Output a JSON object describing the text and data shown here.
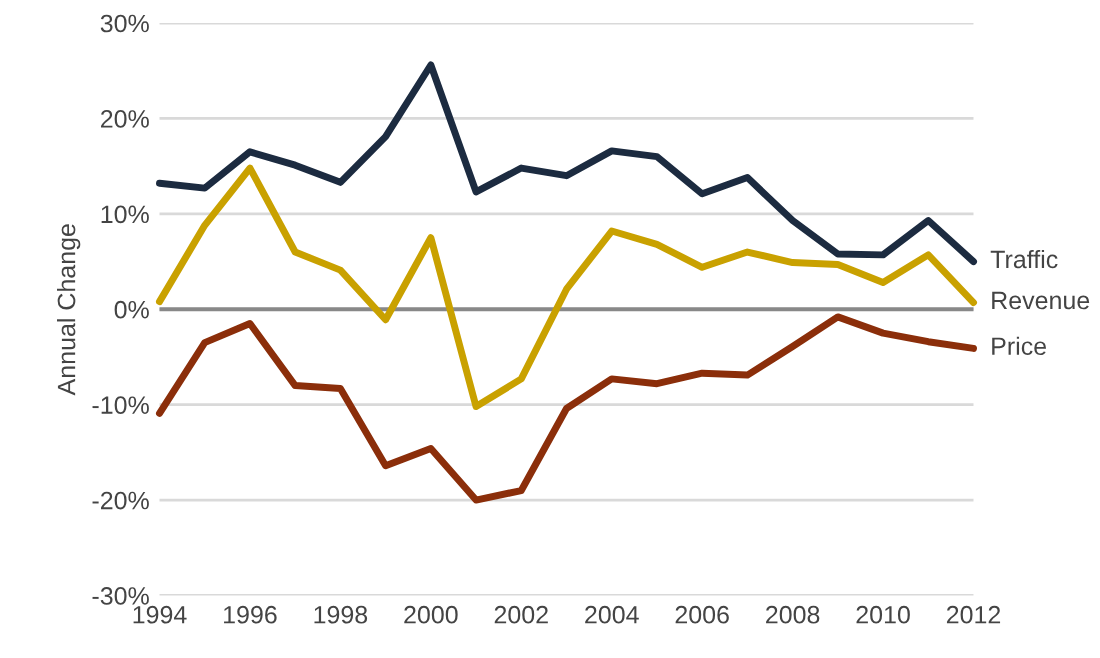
{
  "chart_data": {
    "type": "line",
    "ylabel": "Annual Change",
    "x": [
      1994,
      1995,
      1996,
      1997,
      1998,
      1999,
      2000,
      2001,
      2002,
      2003,
      2004,
      2005,
      2006,
      2007,
      2008,
      2009,
      2010,
      2011,
      2012
    ],
    "series": [
      {
        "name": "Traffic",
        "color": "#1c2b40",
        "values": [
          13.2,
          12.7,
          16.5,
          15.1,
          13.3,
          18.1,
          25.6,
          12.3,
          14.8,
          14.0,
          16.6,
          16.0,
          12.1,
          13.8,
          9.3,
          5.8,
          5.7,
          9.3,
          5.0
        ]
      },
      {
        "name": "Revenue",
        "color": "#c9a100",
        "values": [
          0.8,
          8.8,
          14.8,
          6.0,
          4.1,
          -1.1,
          7.5,
          -10.2,
          -7.3,
          2.1,
          8.2,
          6.8,
          4.4,
          6.0,
          4.9,
          4.7,
          2.8,
          5.7,
          0.7
        ]
      },
      {
        "name": "Price",
        "color": "#8b2e0a",
        "values": [
          -10.9,
          -3.5,
          -1.5,
          -8.0,
          -8.3,
          -16.4,
          -14.6,
          -20.0,
          -19.0,
          -10.4,
          -7.3,
          -7.8,
          -6.7,
          -6.9,
          -3.9,
          -0.8,
          -2.5,
          -3.4,
          -4.1
        ]
      }
    ],
    "xlim": [
      1994,
      2012
    ],
    "xticks": [
      1994,
      1996,
      1998,
      2000,
      2002,
      2004,
      2006,
      2008,
      2010,
      2012
    ],
    "ylim": [
      -30,
      30
    ],
    "yticks": [
      {
        "value": -30,
        "label": "-30%"
      },
      {
        "value": -20,
        "label": "-20%"
      },
      {
        "value": -10,
        "label": "-10%"
      },
      {
        "value": 0,
        "label": "0%"
      },
      {
        "value": 10,
        "label": "10%"
      },
      {
        "value": 20,
        "label": "20%"
      },
      {
        "value": 30,
        "label": "30%"
      }
    ],
    "ref_lines": [
      {
        "axis": "y",
        "value": 0,
        "color": "#888888"
      }
    ],
    "grid": "y",
    "legend": false,
    "marker": "none",
    "line_style": "solid"
  }
}
